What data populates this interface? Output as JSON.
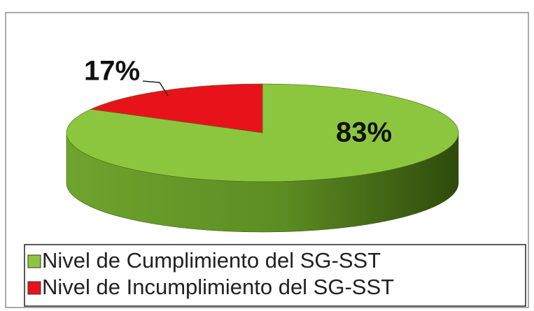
{
  "chart_data": {
    "type": "pie",
    "categories": [
      "Nivel de Cumplimiento del SG-SST",
      "Nivel de Incumplimiento del SG-SST"
    ],
    "values": [
      83,
      17
    ],
    "value_labels": [
      "83%",
      "17%"
    ],
    "colors": [
      "#8cc63e",
      "#e8131a"
    ],
    "legend": "bottom"
  }
}
